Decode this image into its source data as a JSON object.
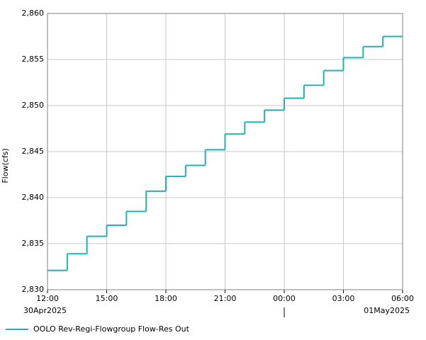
{
  "chart_data": {
    "type": "step-line",
    "y_label": "Flow(cfs)",
    "x": [
      "2025-04-30T12:00",
      "2025-04-30T13:00",
      "2025-04-30T14:00",
      "2025-04-30T15:00",
      "2025-04-30T16:00",
      "2025-04-30T17:00",
      "2025-04-30T18:00",
      "2025-04-30T19:00",
      "2025-04-30T20:00",
      "2025-04-30T21:00",
      "2025-04-30T22:00",
      "2025-04-30T23:00",
      "2025-05-01T00:00",
      "2025-05-01T01:00",
      "2025-05-01T02:00",
      "2025-05-01T03:00",
      "2025-05-01T04:00",
      "2025-05-01T05:00"
    ],
    "series": [
      {
        "name": "OOLO Rev-Regi-Flowgroup Flow-Res Out",
        "color": "#20b2b0",
        "values": [
          2832.1,
          2833.9,
          2835.8,
          2837.0,
          2838.5,
          2840.7,
          2842.3,
          2843.5,
          2845.2,
          2846.9,
          2848.2,
          2849.5,
          2850.8,
          2852.2,
          2853.8,
          2855.2,
          2856.4,
          2857.5
        ]
      }
    ],
    "xlim": [
      "2025-04-30T12:00",
      "2025-05-01T06:00"
    ],
    "xticks": [
      {
        "value": "2025-04-30T12:00",
        "label": "12:00"
      },
      {
        "value": "2025-04-30T15:00",
        "label": "15:00"
      },
      {
        "value": "2025-04-30T18:00",
        "label": "18:00"
      },
      {
        "value": "2025-04-30T21:00",
        "label": "21:00"
      },
      {
        "value": "2025-05-01T00:00",
        "label": "00:00"
      },
      {
        "value": "2025-05-01T03:00",
        "label": "03:00"
      },
      {
        "value": "2025-05-01T06:00",
        "label": "06:00"
      }
    ],
    "date_labels": [
      {
        "value": "2025-04-30T12:00",
        "label": "30Apr2025"
      },
      {
        "value": "2025-05-01T06:00",
        "label": "01May2025"
      }
    ],
    "ylim": [
      2830,
      2860
    ],
    "yticks": [
      {
        "value": 2830,
        "label": "2,830"
      },
      {
        "value": 2835,
        "label": "2,835"
      },
      {
        "value": 2840,
        "label": "2,840"
      },
      {
        "value": 2845,
        "label": "2,845"
      },
      {
        "value": 2850,
        "label": "2,850"
      },
      {
        "value": 2855,
        "label": "2,855"
      },
      {
        "value": 2860,
        "label": "2,860"
      }
    ],
    "grid": true
  }
}
